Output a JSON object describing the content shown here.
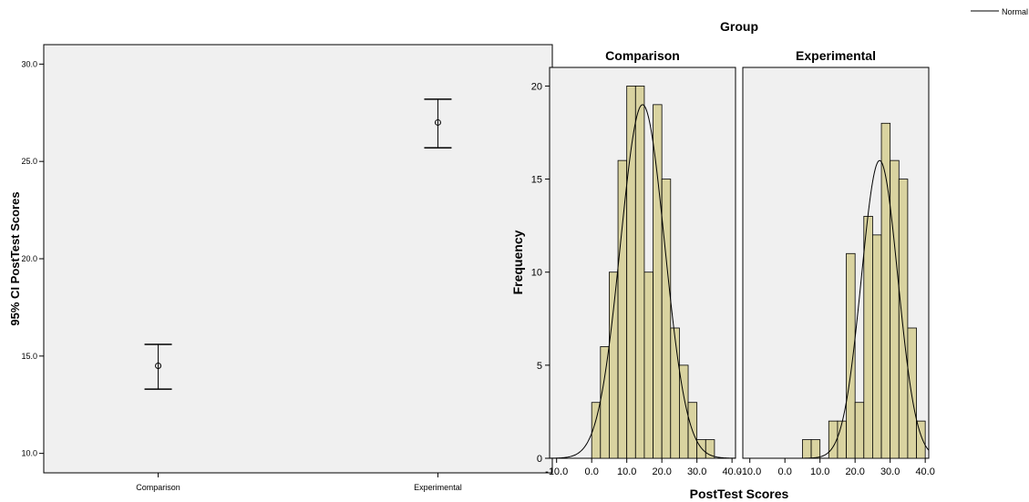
{
  "colors": {
    "panel_bg": "#f0f0f0",
    "bar_fill": "#d9d3a0",
    "bar_stroke": "#000000",
    "line": "#000000"
  },
  "chart_data": [
    {
      "type": "errorbar",
      "ylabel": "95% CI PostTest Scores",
      "categories": [
        "Comparison",
        "Experimental"
      ],
      "means": [
        14.5,
        27.0
      ],
      "ci_low": [
        13.3,
        25.7
      ],
      "ci_high": [
        15.6,
        28.2
      ],
      "ylim": [
        9.0,
        31.0
      ],
      "yticks": [
        "10.0",
        "15.0",
        "20.0",
        "25.0",
        "30.0"
      ]
    },
    {
      "type": "bar",
      "subtype": "histogram",
      "title": "Group",
      "xlabel": "PostTest Scores",
      "ylabel": "Frequency",
      "legend": {
        "label": "Normal",
        "position": "top-right"
      },
      "xticks": [
        "-10.0",
        "0.0",
        "10.0",
        "20.0",
        "30.0",
        "40.0"
      ],
      "yticks": [
        "0",
        "5",
        "10",
        "15",
        "20"
      ],
      "xlim": [
        -12,
        41
      ],
      "ylim": [
        0,
        21
      ],
      "bin_width": 2.5,
      "panels": [
        {
          "name": "Comparison",
          "bin_starts": [
            0,
            2.5,
            5,
            7.5,
            10,
            12.5,
            15,
            17.5,
            20,
            22.5,
            25,
            27.5,
            30,
            32.5
          ],
          "counts": [
            3,
            6,
            10,
            16,
            20,
            20,
            10,
            19,
            15,
            7,
            5,
            3,
            1,
            1
          ],
          "normal": {
            "mean": 14.5,
            "sd": 6.3,
            "peak": 19
          }
        },
        {
          "name": "Experimental",
          "bin_starts": [
            5,
            7.5,
            10,
            12.5,
            15,
            17.5,
            20,
            22.5,
            25,
            27.5,
            30,
            32.5,
            35,
            37.5
          ],
          "counts": [
            1,
            1,
            0,
            2,
            2,
            11,
            3,
            13,
            12,
            18,
            16,
            15,
            7,
            2
          ],
          "normal": {
            "mean": 27.0,
            "sd": 5.2,
            "peak": 16
          }
        }
      ]
    }
  ]
}
